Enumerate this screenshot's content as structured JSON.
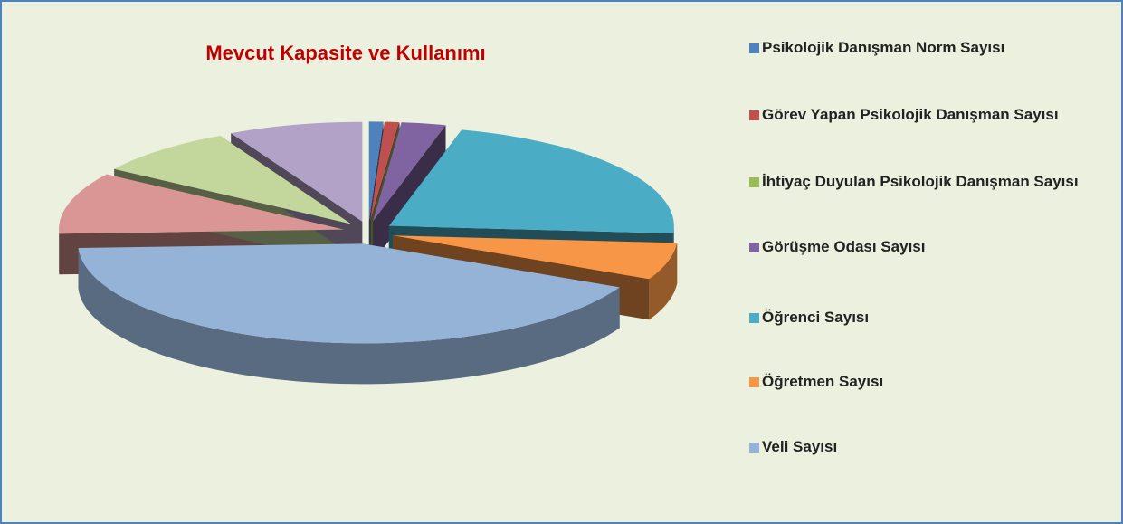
{
  "chart_data": {
    "type": "pie3d",
    "title": "Mevcut Kapasite ve Kullanımı",
    "categories": [
      "Psikolojik Danışman Norm Sayısı",
      "Görev Yapan Psikolojik Danışman Sayısı",
      "İhtiyaç Duyulan Psikolojik Danışman Sayısı",
      "Görüşme Odası Sayısı",
      "Öğrenci Sayısı",
      "Öğretmen Sayısı",
      "Veli Sayısı",
      null,
      null,
      null
    ],
    "values": [
      0.8,
      0.8,
      0,
      2.5,
      22,
      6,
      42,
      10,
      8,
      7.6
    ],
    "colors": [
      "#4f81bd",
      "#c0504d",
      "#9bbb59",
      "#8064a2",
      "#4bacc6",
      "#f79646",
      "#95b3d7",
      "#d99694",
      "#c3d69b",
      "#b3a2c7"
    ],
    "legend": "right"
  }
}
